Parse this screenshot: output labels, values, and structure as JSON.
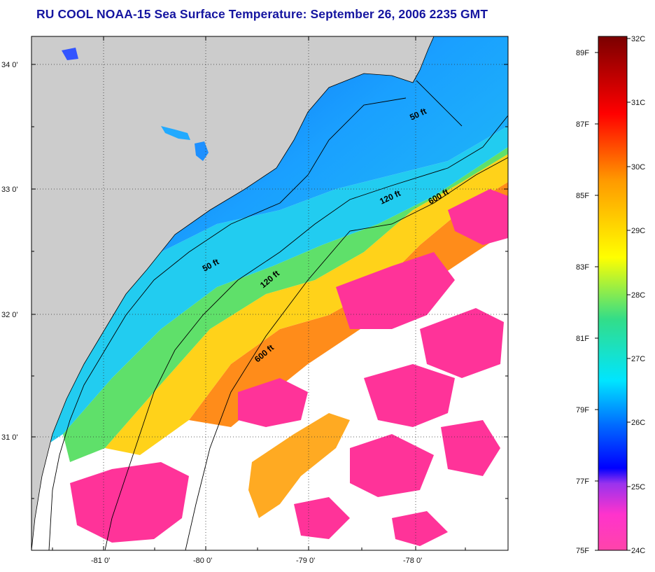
{
  "title": "RU COOL  NOAA-15  Sea Surface Temperature:  September 26, 2006 2235 GMT",
  "map": {
    "lat_labels": [
      "34 0'",
      "33 0'",
      "32 0'",
      "31 0'"
    ],
    "lon_labels": [
      "-81 0'",
      "-80 0'",
      "-79 0'",
      "-78 0'"
    ],
    "land_color": "#cccccc",
    "missing_color": "#ffffff",
    "isobath_labels": [
      "50 ft",
      "120 ft",
      "600 ft",
      "50 ft",
      "120 ft",
      "600 ft"
    ]
  },
  "colorbar": {
    "celsius_labels": [
      "32C",
      "31C",
      "30C",
      "29C",
      "28C",
      "27C",
      "26C",
      "25C",
      "24C"
    ],
    "fahrenheit_labels": [
      "89F",
      "87F",
      "85F",
      "83F",
      "81F",
      "79F",
      "77F",
      "75F"
    ],
    "colors": [
      "#ff44aa",
      "#cc22ee",
      "#0000ff",
      "#0088ff",
      "#00ffff",
      "#33dd88",
      "#ffff00",
      "#ff9900",
      "#ff0000",
      "#7a0000"
    ]
  }
}
